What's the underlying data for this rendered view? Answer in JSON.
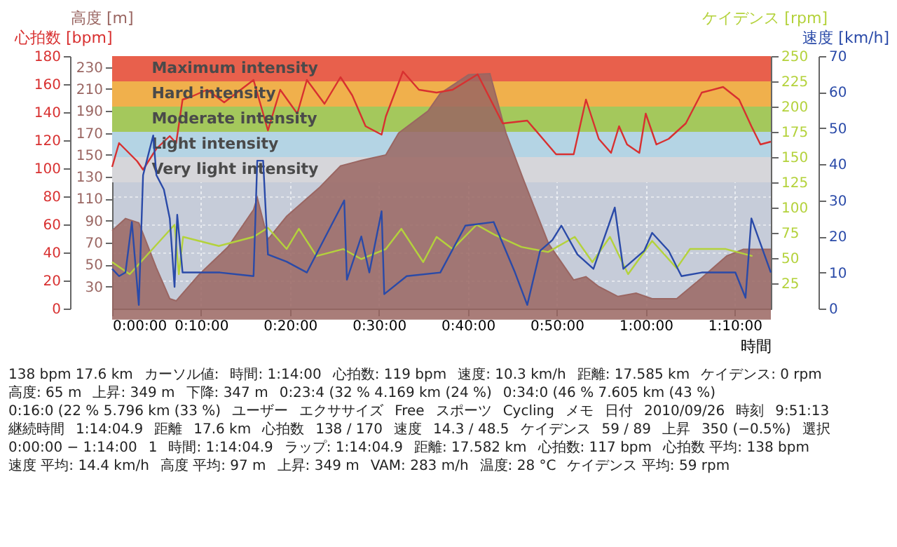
{
  "chart_data": [
    {
      "type": "line",
      "xlabel": "時間",
      "ylabel": "心拍数 [bpm]",
      "y2label": "高度 [m]",
      "xlim": [
        0,
        1.2345
      ],
      "xticks": [
        {
          "value": 0,
          "label": "0:00:00"
        },
        {
          "value": 0.16667,
          "label": "0:10:00"
        },
        {
          "value": 0.33333,
          "label": "0:20:00"
        },
        {
          "value": 0.5,
          "label": "0:30:00"
        },
        {
          "value": 0.66667,
          "label": "0:40:00"
        },
        {
          "value": 0.83333,
          "label": "0:50:00"
        },
        {
          "value": 1,
          "label": "1:00:00"
        },
        {
          "value": 1.16667,
          "label": "1:10:00"
        }
      ],
      "ylim": [
        0,
        180
      ],
      "yticks": [
        0,
        20,
        40,
        60,
        80,
        100,
        120,
        140,
        160,
        180
      ],
      "y2lim": [
        10,
        240
      ],
      "y2ticks": [
        30,
        50,
        70,
        90,
        110,
        130,
        150,
        170,
        190,
        210,
        230
      ],
      "grid": true,
      "bands": [
        {
          "axis": "y",
          "from": 162,
          "to": 180,
          "label": "Maximum intensity",
          "color": "#e8604c"
        },
        {
          "axis": "y",
          "from": 144,
          "to": 162,
          "label": "Hard intensity",
          "color": "#f0b04c"
        },
        {
          "axis": "y",
          "from": 126,
          "to": 144,
          "label": "Moderate intensity",
          "color": "#a4c85c"
        },
        {
          "axis": "y",
          "from": 108,
          "to": 126,
          "label": "Light intensity",
          "color": "#b4d4e4"
        },
        {
          "axis": "y",
          "from": 90,
          "to": 108,
          "label": "Very light intensity",
          "color": "#d6d6da"
        }
      ],
      "series": [
        {
          "type": "area",
          "axis": "y2",
          "color": "#9a6662",
          "x": [
            0,
            0.025,
            0.05,
            0.083,
            0.108,
            0.12,
            0.163,
            0.217,
            0.265,
            0.272,
            0.292,
            0.327,
            0.388,
            0.428,
            0.467,
            0.513,
            0.537,
            0.592,
            0.615,
            0.668,
            0.708,
            0.738,
            0.772,
            0.818,
            0.865,
            0.888,
            0.912,
            0.948,
            0.982,
            1.012,
            1.058,
            1.105,
            1.152,
            1.183,
            1.21,
            1.2345
          ],
          "values": [
            81,
            92,
            88,
            47,
            19,
            17,
            41,
            66,
            100,
            111,
            73,
            94,
            120,
            140,
            145,
            150,
            170,
            190,
            206,
            223,
            224,
            170,
            126,
            69,
            36,
            39,
            30,
            21,
            24,
            19,
            19,
            38,
            58,
            64,
            64,
            64
          ]
        },
        {
          "color": "#d83030",
          "x": [
            0,
            0.013,
            0.047,
            0.058,
            0.083,
            0.108,
            0.12,
            0.132,
            0.148,
            0.178,
            0.21,
            0.265,
            0.292,
            0.315,
            0.347,
            0.365,
            0.398,
            0.428,
            0.45,
            0.475,
            0.505,
            0.513,
            0.545,
            0.575,
            0.608,
            0.638,
            0.685,
            0.732,
            0.778,
            0.832,
            0.865,
            0.888,
            0.912,
            0.935,
            0.95,
            0.965,
            0.988,
            1,
            1.02,
            1.043,
            1.075,
            1.105,
            1.145,
            1.175,
            1.198,
            1.215,
            1.2345
          ],
          "values": [
            101,
            118,
            105,
            99,
            114,
            123,
            118,
            149,
            151,
            156,
            147,
            163,
            127,
            156,
            139,
            163,
            146,
            165,
            152,
            130,
            124,
            137,
            169,
            156,
            154,
            156,
            167,
            132,
            134,
            110,
            110,
            149,
            121,
            111,
            130,
            117,
            111,
            139,
            117,
            121,
            132,
            154,
            158,
            149,
            130,
            117,
            119
          ]
        }
      ],
      "annotations": [
        "138 bpm 17.6 km",
        "カーソル値:",
        "時間: 1:14:00",
        "心拍数: 119 bpm",
        "速度: 10.3 km/h",
        "距離: 17.585 km",
        "ケイデンス: 0 rpm",
        "高度: 65 m",
        "上昇: 349 m",
        "下降: 347 m",
        "0:23:4 (32 % 4.169 km (24 %)",
        "0:34:0 (46 % 7.605 km (43 %)",
        "0:16:0 (22 % 5.796 km (33 %)",
        "ユーザー",
        "エクササイズ",
        "Free",
        "スポーツ",
        "Cycling",
        "メモ",
        "日付",
        "2010/09/26",
        "時刻",
        "9:51:13",
        "継続時間",
        "1:14:04.9",
        "距離",
        "17.6 km",
        "心拍数",
        "138 / 170",
        "速度",
        "14.3 / 48.5",
        "ケイデンス",
        "59 / 89",
        "上昇",
        "350 (−0.5%)",
        "選択",
        "0:00:00 − 1:14:00",
        "1",
        "時間: 1:14:04.9",
        "ラップ: 1:14:04.9",
        "距離: 17.582 km",
        "心拍数: 117 bpm",
        "心拍数 平均: 138 bpm",
        "速度 平均: 14.4 km/h",
        "高度 平均: 97 m",
        "上昇: 349 m",
        "VAM: 283 m/h",
        "温度: 28 °C",
        "ケイデンス 平均: 59 rpm"
      ]
    },
    {
      "type": "line",
      "ylabel": "ケイデンス [rpm]",
      "y2label": "速度 [km/h]",
      "tick_labels": "y",
      "xlim": [
        0,
        1.2345
      ],
      "ylim": [
        0,
        250
      ],
      "yticks": [
        25,
        50,
        75,
        100,
        125,
        150,
        175,
        200,
        225,
        250
      ],
      "y2lim": [
        0,
        70
      ],
      "y2ticks": [
        0,
        10,
        20,
        30,
        40,
        50,
        60,
        70
      ],
      "series": [
        {
          "color": "#b4d23c",
          "x": [
            0,
            0.033,
            0.117,
            0.125,
            0.133,
            0.2,
            0.265,
            0.292,
            0.327,
            0.35,
            0.383,
            0.433,
            0.467,
            0.513,
            0.542,
            0.583,
            0.608,
            0.638,
            0.683,
            0.717,
            0.767,
            0.817,
            0.867,
            0.9,
            0.933,
            0.967,
            1.012,
            1.058,
            1.083,
            1.15,
            1.2
          ],
          "values": [
            46,
            34,
            83,
            34,
            71,
            62,
            71,
            80,
            59,
            79,
            52,
            59,
            49,
            59,
            79,
            46,
            71,
            59,
            83,
            73,
            61,
            56,
            71,
            46,
            71,
            34,
            67,
            40,
            59,
            59,
            52
          ]
        },
        {
          "axis": "y2",
          "color": "#2a4aa8",
          "x": [
            0,
            0.013,
            0.025,
            0.037,
            0.05,
            0.058,
            0.077,
            0.083,
            0.097,
            0.108,
            0.117,
            0.122,
            0.132,
            0.202,
            0.265,
            0.272,
            0.283,
            0.292,
            0.327,
            0.365,
            0.435,
            0.44,
            0.467,
            0.482,
            0.505,
            0.51,
            0.552,
            0.615,
            0.662,
            0.715,
            0.755,
            0.778,
            0.802,
            0.825,
            0.842,
            0.872,
            0.902,
            0.942,
            0.958,
            0.997,
            1.012,
            1.043,
            1.067,
            1.105,
            1.168,
            1.187,
            1.198,
            1.2345
          ],
          "values": [
            11,
            9,
            10,
            24,
            1,
            37,
            48,
            37,
            33,
            25,
            6,
            26,
            10,
            10,
            9,
            41,
            41,
            15,
            13,
            10,
            30,
            8,
            20,
            10,
            27,
            4,
            9,
            10,
            23,
            24,
            10,
            1,
            16,
            19,
            23,
            15,
            11,
            28,
            11,
            16,
            21,
            16,
            9,
            10,
            10,
            3,
            25,
            10
          ]
        }
      ]
    }
  ]
}
